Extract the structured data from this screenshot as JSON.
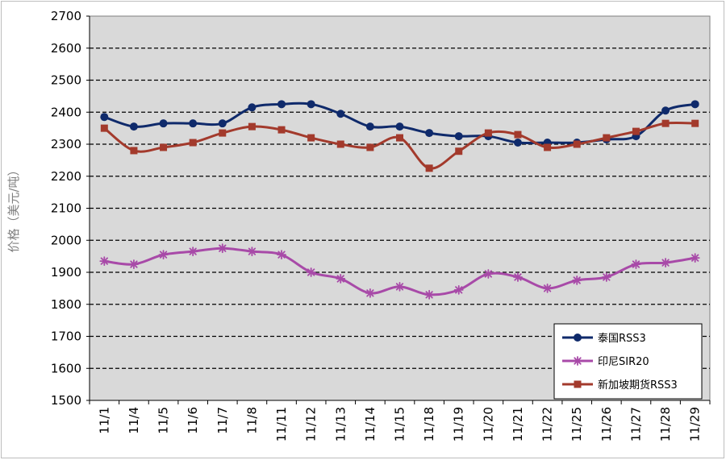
{
  "chart_data": {
    "type": "line",
    "ylabel": "价格（美元/吨）",
    "xlabel": "",
    "ylim": [
      1500,
      2700
    ],
    "ytick_step": 100,
    "grid": "horizontal dashed",
    "legend_position": "bottom-right",
    "plot_background": "#d9d9d9",
    "categories": [
      "11/1",
      "11/4",
      "11/5",
      "11/6",
      "11/7",
      "11/8",
      "11/11",
      "11/12",
      "11/13",
      "11/14",
      "11/15",
      "11/18",
      "11/19",
      "11/20",
      "11/21",
      "11/22",
      "11/25",
      "11/26",
      "11/27",
      "11/28",
      "11/29"
    ],
    "series": [
      {
        "name": "泰国RSS3",
        "color": "#0f2a6b",
        "marker": "circle",
        "values": [
          2385,
          2355,
          2365,
          2365,
          2365,
          2415,
          2425,
          2425,
          2395,
          2355,
          2355,
          2335,
          2325,
          2325,
          2305,
          2305,
          2305,
          2315,
          2325,
          2405,
          2425
        ]
      },
      {
        "name": "印尼SIR20",
        "color": "#a84aa8",
        "marker": "asterisk",
        "values": [
          1935,
          1925,
          1955,
          1965,
          1975,
          1965,
          1955,
          1900,
          1880,
          1835,
          1855,
          1830,
          1845,
          1895,
          1885,
          1850,
          1875,
          1885,
          1925,
          1930,
          1945
        ]
      },
      {
        "name": "新加坡期货RSS3",
        "color": "#a33a2c",
        "marker": "square",
        "values": [
          2350,
          2280,
          2290,
          2305,
          2335,
          2355,
          2345,
          2320,
          2300,
          2290,
          2320,
          2225,
          2278,
          2335,
          2330,
          2290,
          2300,
          2320,
          2340,
          2365,
          2365
        ]
      }
    ]
  }
}
